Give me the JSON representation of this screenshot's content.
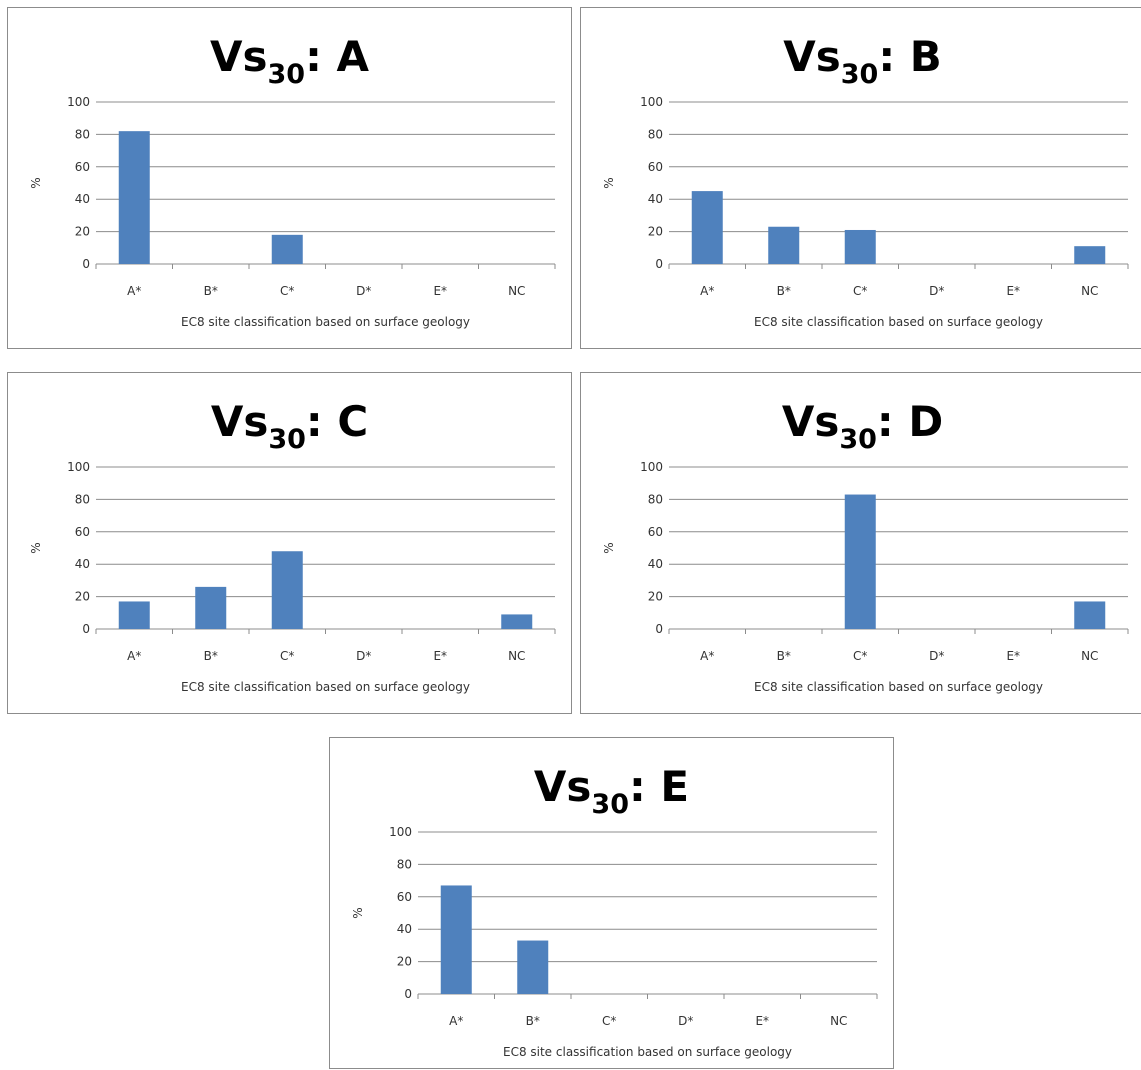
{
  "colors": {
    "bar": "#4f81bd",
    "grid": "#8c8c8c",
    "text": "#333333"
  },
  "chart_data": [
    {
      "type": "bar",
      "title_prefix": "Vs",
      "title_subscript": "30",
      "title_suffix": ": A",
      "xlabel": "EC8 site classification based on surface geology",
      "ylabel": "%",
      "categories": [
        "A*",
        "B*",
        "C*",
        "D*",
        "E*",
        "NC"
      ],
      "values": [
        82,
        0,
        18,
        0,
        0,
        0
      ],
      "ylim": [
        0,
        100
      ],
      "yticks": [
        "0",
        "20",
        "40",
        "60",
        "80",
        "100"
      ],
      "grid": true
    },
    {
      "type": "bar",
      "title_prefix": "Vs",
      "title_subscript": "30",
      "title_suffix": ": B",
      "xlabel": "EC8 site classification based on surface geology",
      "ylabel": "%",
      "categories": [
        "A*",
        "B*",
        "C*",
        "D*",
        "E*",
        "NC"
      ],
      "values": [
        45,
        23,
        21,
        0,
        0,
        11
      ],
      "ylim": [
        0,
        100
      ],
      "yticks": [
        "0",
        "20",
        "40",
        "60",
        "80",
        "100"
      ],
      "grid": true
    },
    {
      "type": "bar",
      "title_prefix": "Vs",
      "title_subscript": "30",
      "title_suffix": ": C",
      "xlabel": "EC8 site classification based on surface geology",
      "ylabel": "%",
      "categories": [
        "A*",
        "B*",
        "C*",
        "D*",
        "E*",
        "NC"
      ],
      "values": [
        17,
        26,
        48,
        0,
        0,
        9
      ],
      "ylim": [
        0,
        100
      ],
      "yticks": [
        "0",
        "20",
        "40",
        "60",
        "80",
        "100"
      ],
      "grid": true
    },
    {
      "type": "bar",
      "title_prefix": "Vs",
      "title_subscript": "30",
      "title_suffix": ": D",
      "xlabel": "EC8 site classification based on surface geology",
      "ylabel": "%",
      "categories": [
        "A*",
        "B*",
        "C*",
        "D*",
        "E*",
        "NC"
      ],
      "values": [
        0,
        0,
        83,
        0,
        0,
        17
      ],
      "ylim": [
        0,
        100
      ],
      "yticks": [
        "0",
        "20",
        "40",
        "60",
        "80",
        "100"
      ],
      "grid": true
    },
    {
      "type": "bar",
      "title_prefix": "Vs",
      "title_subscript": "30",
      "title_suffix": ": E",
      "xlabel": "EC8 site classification based on surface geology",
      "ylabel": "%",
      "categories": [
        "A*",
        "B*",
        "C*",
        "D*",
        "E*",
        "NC"
      ],
      "values": [
        67,
        33,
        0,
        0,
        0,
        0
      ],
      "ylim": [
        0,
        100
      ],
      "yticks": [
        "0",
        "20",
        "40",
        "60",
        "80",
        "100"
      ],
      "grid": true
    }
  ]
}
